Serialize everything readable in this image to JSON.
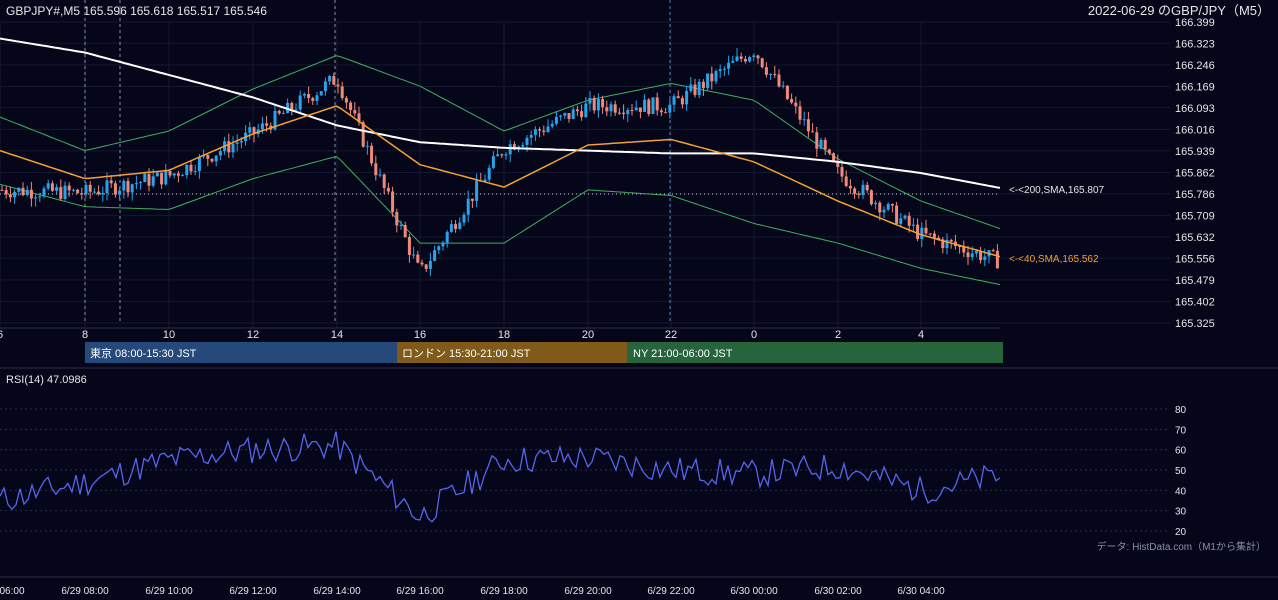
{
  "header": {
    "left": "GBPJPY#,M5 165.596 165.618 165.517 165.546",
    "right": "2022-06-29 のGBP/JPY（M5）"
  },
  "colors": {
    "bg": "#05061a",
    "up": "#26a4ec",
    "down": "#ef8a7a",
    "sma40": "#f5a033",
    "sma200": "#ffffff",
    "bollinger": "#3fae62",
    "rsi": "#5566ee",
    "tokyo": "#25497a",
    "london": "#7f5a18",
    "ny": "#26643c"
  },
  "price_axis": {
    "ticks": [
      "166.399",
      "166.323",
      "166.246",
      "166.169",
      "166.093",
      "166.016",
      "165.939",
      "165.862",
      "165.786",
      "165.709",
      "165.632",
      "165.556",
      "165.479",
      "165.402",
      "165.325"
    ]
  },
  "hour_axis": {
    "labels": [
      "6",
      "8",
      "10",
      "12",
      "14",
      "16",
      "18",
      "20",
      "22",
      "0",
      "2",
      "4"
    ]
  },
  "sessions": [
    {
      "label": "東京 08:00-15:30 JST"
    },
    {
      "label": "ロンドン 15:30-21:00 JST"
    },
    {
      "label": "NY 21:00-06:00 JST"
    }
  ],
  "annotations": {
    "sma200": "<-<200,SMA,165.807",
    "sma40": "<-<40,SMA,165.562"
  },
  "rsi_panel": {
    "title": "RSI(14) 47.0986",
    "ticks": [
      "80",
      "70",
      "60",
      "50",
      "40",
      "30",
      "20"
    ]
  },
  "source_note": "データ: HistData.com（M1から集計）",
  "time_axis": {
    "labels": [
      "06:00",
      "6/29 08:00",
      "6/29 10:00",
      "6/29 12:00",
      "6/29 14:00",
      "6/29 16:00",
      "6/29 18:00",
      "6/29 20:00",
      "6/29 22:00",
      "6/30 00:00",
      "6/30 02:00",
      "6/30 04:00"
    ]
  },
  "chart_data": {
    "type": "line",
    "title": "2022-06-29 のGBP/JPY（M5）",
    "instrument": "GBPJPY#",
    "timeframe": "M5",
    "last_ohlc": {
      "open": 165.596,
      "high": 165.618,
      "low": 165.517,
      "close": 165.546
    },
    "x": [
      "06:00",
      "08:00",
      "10:00",
      "12:00",
      "14:00",
      "16:00",
      "18:00",
      "20:00",
      "22:00",
      "00:00",
      "02:00",
      "04:00",
      "05:40"
    ],
    "ylim": [
      165.325,
      166.399
    ],
    "series": [
      {
        "name": "SMA 40",
        "values": [
          165.94,
          165.84,
          165.87,
          166.0,
          166.1,
          165.89,
          165.81,
          165.96,
          165.98,
          165.9,
          165.76,
          165.64,
          165.562
        ]
      },
      {
        "name": "SMA 200",
        "values": [
          166.34,
          166.29,
          166.21,
          166.13,
          166.03,
          165.97,
          165.95,
          165.94,
          165.93,
          165.93,
          165.9,
          165.86,
          165.807
        ]
      }
    ],
    "price_path": [
      165.8,
      165.79,
      165.85,
      166.0,
      166.2,
      165.5,
      165.95,
      166.1,
      166.1,
      166.3,
      165.86,
      165.64,
      165.546
    ],
    "rsi": {
      "name": "RSI(14)",
      "last": 47.0986,
      "ylim": [
        20,
        80
      ],
      "x": [
        "06:00",
        "08:00",
        "10:00",
        "12:00",
        "14:00",
        "16:00",
        "18:00",
        "20:00",
        "22:00",
        "00:00",
        "02:00",
        "04:00",
        "05:40"
      ],
      "values": [
        35,
        44,
        55,
        60,
        62,
        27,
        55,
        56,
        50,
        48,
        52,
        40,
        47.1
      ]
    }
  }
}
